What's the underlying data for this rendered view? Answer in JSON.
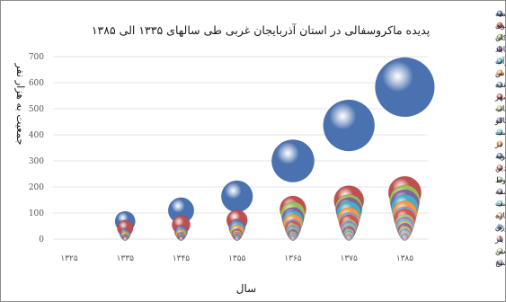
{
  "chart_data": {
    "type": "bubble",
    "title": "پدیده ماکروسفالی در استان آذربایجان غربی طی سالهای ۱۳۳۵ الی ۱۳۸۵",
    "xlabel": "سال",
    "ylabel": "جمعیت به هزار نفر",
    "x_tick_labels": [
      "۱۳۲۵",
      "۱۳۳۵",
      "۱۳۴۵",
      "۱۳۵۵",
      "۱۳۶۵",
      "۱۳۷۵",
      "۱۳۸۵"
    ],
    "x_tick_values": [
      1325,
      1335,
      1345,
      1355,
      1365,
      1375,
      1385
    ],
    "y_tick_labels": [
      "0",
      "100",
      "200",
      "300",
      "400",
      "500",
      "600",
      "700"
    ],
    "ylim": [
      0,
      700
    ],
    "grid": "horizontal",
    "legend_position": "right",
    "series": [
      {
        "name": "ارومیه",
        "color": "#4a72b0",
        "points": [
          {
            "x": 1335,
            "y": 68
          },
          {
            "x": 1345,
            "y": 110
          },
          {
            "x": 1355,
            "y": 164
          },
          {
            "x": 1365,
            "y": 300
          },
          {
            "x": 1375,
            "y": 436
          },
          {
            "x": 1385,
            "y": 583
          }
        ]
      },
      {
        "name": "خوی",
        "color": "#c0504d",
        "points": [
          {
            "x": 1335,
            "y": 42
          },
          {
            "x": 1345,
            "y": 55
          },
          {
            "x": 1355,
            "y": 72
          },
          {
            "x": 1365,
            "y": 115
          },
          {
            "x": 1375,
            "y": 148
          },
          {
            "x": 1385,
            "y": 178
          }
        ]
      },
      {
        "name": "بوکان",
        "color": "#9bbb59",
        "points": [
          {
            "x": 1335,
            "y": 12
          },
          {
            "x": 1345,
            "y": 20
          },
          {
            "x": 1355,
            "y": 32
          },
          {
            "x": 1365,
            "y": 97
          },
          {
            "x": 1375,
            "y": 120
          },
          {
            "x": 1385,
            "y": 150
          }
        ]
      },
      {
        "name": "مهاباد",
        "color": "#8064a2",
        "points": [
          {
            "x": 1335,
            "y": 20
          },
          {
            "x": 1345,
            "y": 28
          },
          {
            "x": 1355,
            "y": 45
          },
          {
            "x": 1365,
            "y": 80
          },
          {
            "x": 1375,
            "y": 110
          },
          {
            "x": 1385,
            "y": 135
          }
        ]
      },
      {
        "name": "میاندوآب",
        "color": "#4bacc6",
        "points": [
          {
            "x": 1335,
            "y": 15
          },
          {
            "x": 1345,
            "y": 22
          },
          {
            "x": 1355,
            "y": 38
          },
          {
            "x": 1365,
            "y": 70
          },
          {
            "x": 1375,
            "y": 98
          },
          {
            "x": 1385,
            "y": 120
          }
        ]
      },
      {
        "name": "سلماس",
        "color": "#f79646",
        "points": [
          {
            "x": 1335,
            "y": 12
          },
          {
            "x": 1345,
            "y": 18
          },
          {
            "x": 1355,
            "y": 30
          },
          {
            "x": 1365,
            "y": 60
          },
          {
            "x": 1375,
            "y": 80
          },
          {
            "x": 1385,
            "y": 100
          }
        ]
      },
      {
        "name": "نقده",
        "color": "#7f9fd2",
        "points": [
          {
            "x": 1335,
            "y": 8
          },
          {
            "x": 1345,
            "y": 12
          },
          {
            "x": 1355,
            "y": 20
          },
          {
            "x": 1365,
            "y": 45
          },
          {
            "x": 1375,
            "y": 65
          },
          {
            "x": 1385,
            "y": 82
          }
        ]
      },
      {
        "name": "پیرانشهر",
        "color": "#d9534f",
        "points": [
          {
            "x": 1335,
            "y": 6
          },
          {
            "x": 1345,
            "y": 10
          },
          {
            "x": 1355,
            "y": 18
          },
          {
            "x": 1365,
            "y": 40
          },
          {
            "x": 1375,
            "y": 58
          },
          {
            "x": 1385,
            "y": 75
          }
        ]
      },
      {
        "name": "تکاب",
        "color": "#a9c47f",
        "points": [
          {
            "x": 1335,
            "y": 5
          },
          {
            "x": 1345,
            "y": 9
          },
          {
            "x": 1355,
            "y": 15
          },
          {
            "x": 1365,
            "y": 32
          },
          {
            "x": 1375,
            "y": 45
          },
          {
            "x": 1385,
            "y": 60
          }
        ]
      },
      {
        "name": "ماکو",
        "color": "#9e86c0",
        "points": [
          {
            "x": 1335,
            "y": 5
          },
          {
            "x": 1345,
            "y": 8
          },
          {
            "x": 1355,
            "y": 12
          },
          {
            "x": 1365,
            "y": 28
          },
          {
            "x": 1375,
            "y": 40
          },
          {
            "x": 1385,
            "y": 52
          }
        ]
      },
      {
        "name": "سردشت",
        "color": "#6cc2d9",
        "points": [
          {
            "x": 1335,
            "y": 4
          },
          {
            "x": 1345,
            "y": 6
          },
          {
            "x": 1355,
            "y": 10
          },
          {
            "x": 1365,
            "y": 24
          },
          {
            "x": 1375,
            "y": 35
          },
          {
            "x": 1385,
            "y": 46
          }
        ]
      },
      {
        "name": "شاهین دژ",
        "color": "#f9ac6b",
        "points": [
          {
            "x": 1335,
            "y": 4
          },
          {
            "x": 1345,
            "y": 6
          },
          {
            "x": 1355,
            "y": 10
          },
          {
            "x": 1365,
            "y": 20
          },
          {
            "x": 1375,
            "y": 30
          },
          {
            "x": 1385,
            "y": 40
          }
        ]
      },
      {
        "name": "اشنویه",
        "color": "#5d7fb5",
        "points": [
          {
            "x": 1335,
            "y": 3
          },
          {
            "x": 1345,
            "y": 5
          },
          {
            "x": 1355,
            "y": 8
          },
          {
            "x": 1365,
            "y": 18
          },
          {
            "x": 1375,
            "y": 26
          },
          {
            "x": 1385,
            "y": 34
          }
        ]
      },
      {
        "name": "قره ضیاءالدین",
        "color": "#c96a67",
        "points": [
          {
            "x": 1335,
            "y": 3
          },
          {
            "x": 1345,
            "y": 4
          },
          {
            "x": 1355,
            "y": 7
          },
          {
            "x": 1365,
            "y": 15
          },
          {
            "x": 1375,
            "y": 22
          },
          {
            "x": 1385,
            "y": 30
          }
        ]
      },
      {
        "name": "شوط",
        "color": "#b6cc90",
        "points": [
          {
            "x": 1335,
            "y": 2
          },
          {
            "x": 1345,
            "y": 3
          },
          {
            "x": 1355,
            "y": 6
          },
          {
            "x": 1365,
            "y": 12
          },
          {
            "x": 1375,
            "y": 18
          },
          {
            "x": 1385,
            "y": 25
          }
        ]
      },
      {
        "name": "سیه چشمه",
        "color": "#a38fc4",
        "points": [
          {
            "x": 1335,
            "y": 2
          },
          {
            "x": 1345,
            "y": 3
          },
          {
            "x": 1355,
            "y": 5
          },
          {
            "x": 1365,
            "y": 10
          },
          {
            "x": 1375,
            "y": 15
          },
          {
            "x": 1385,
            "y": 20
          }
        ]
      },
      {
        "name": "پلدشت",
        "color": "#7fcbe0",
        "points": [
          {
            "x": 1335,
            "y": 2
          },
          {
            "x": 1345,
            "y": 3
          },
          {
            "x": 1355,
            "y": 4
          },
          {
            "x": 1365,
            "y": 8
          },
          {
            "x": 1375,
            "y": 12
          },
          {
            "x": 1385,
            "y": 16
          }
        ]
      },
      {
        "name": "تازه",
        "color": "#fbbc86",
        "points": [
          {
            "x": 1335,
            "y": 1
          },
          {
            "x": 1345,
            "y": 2
          },
          {
            "x": 1355,
            "y": 3
          },
          {
            "x": 1365,
            "y": 6
          },
          {
            "x": 1375,
            "y": 9
          },
          {
            "x": 1385,
            "y": 12
          }
        ]
      },
      {
        "name": "فیروزق",
        "color": "#8eaad6",
        "points": [
          {
            "x": 1335,
            "y": 1
          },
          {
            "x": 1345,
            "y": 2
          },
          {
            "x": 1355,
            "y": 3
          },
          {
            "x": 1365,
            "y": 5
          },
          {
            "x": 1375,
            "y": 7
          },
          {
            "x": 1385,
            "y": 9
          }
        ]
      },
      {
        "name": "محمد یار",
        "color": "#d9938f",
        "points": [
          {
            "x": 1335,
            "y": 1
          },
          {
            "x": 1345,
            "y": 1
          },
          {
            "x": 1355,
            "y": 2
          },
          {
            "x": 1365,
            "y": 4
          },
          {
            "x": 1375,
            "y": 6
          },
          {
            "x": 1385,
            "y": 7
          }
        ]
      },
      {
        "name": "نوشین",
        "color": "#c5d8a4",
        "points": [
          {
            "x": 1335,
            "y": 1
          },
          {
            "x": 1345,
            "y": 1
          },
          {
            "x": 1355,
            "y": 2
          },
          {
            "x": 1365,
            "y": 3
          },
          {
            "x": 1375,
            "y": 4
          },
          {
            "x": 1385,
            "y": 5
          }
        ]
      },
      {
        "name": "قرنشیخ",
        "color": "#b5a6d2",
        "points": [
          {
            "x": 1335,
            "y": 0
          },
          {
            "x": 1345,
            "y": 1
          },
          {
            "x": 1355,
            "y": 1
          },
          {
            "x": 1365,
            "y": 2
          },
          {
            "x": 1375,
            "y": 3
          },
          {
            "x": 1385,
            "y": 4
          }
        ]
      }
    ]
  }
}
